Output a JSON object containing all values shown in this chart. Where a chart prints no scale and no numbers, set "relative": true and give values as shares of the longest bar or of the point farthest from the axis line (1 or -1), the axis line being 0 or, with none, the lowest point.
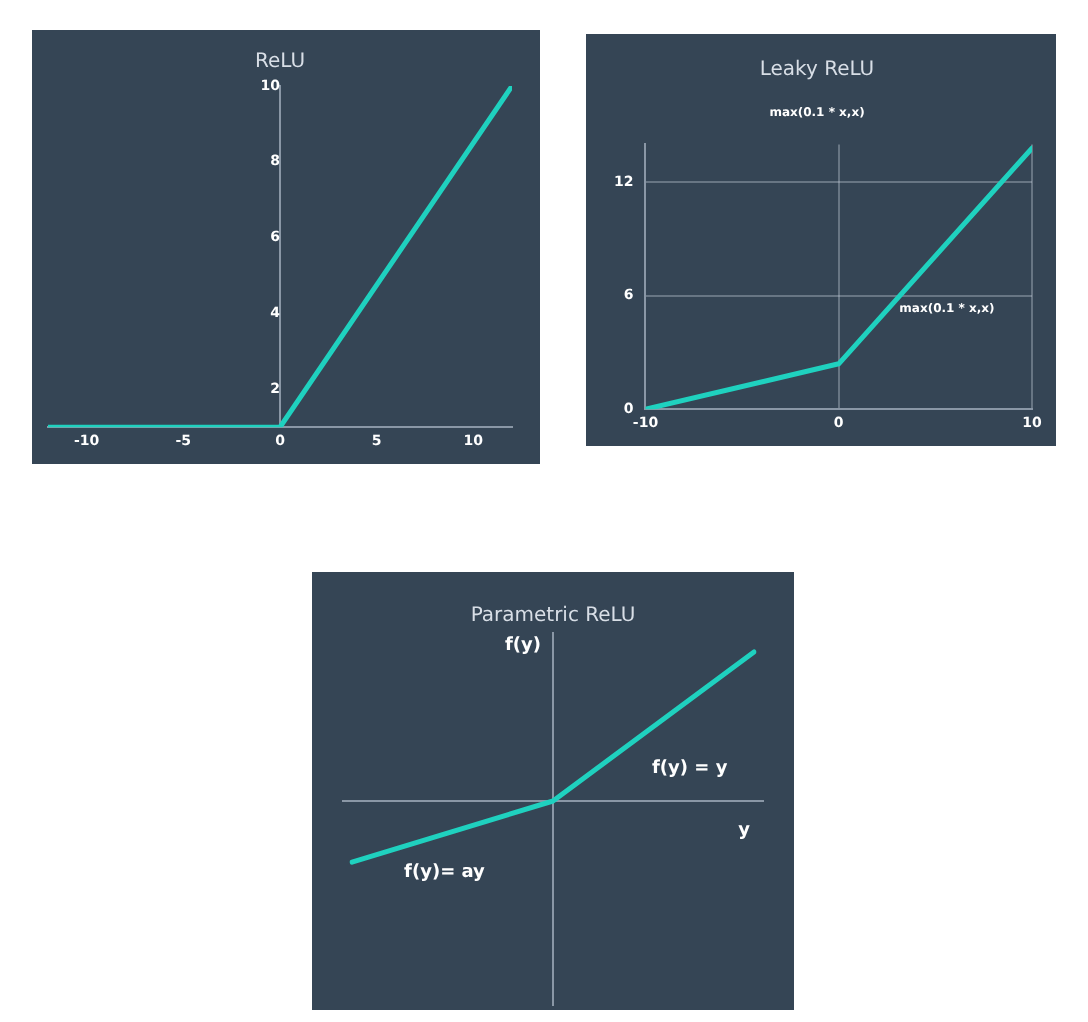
{
  "chart_data": [
    {
      "type": "line",
      "title": "ReLU",
      "x": [
        -12,
        0,
        12
      ],
      "series": [
        {
          "color": "#1fd1bf",
          "values": [
            1,
            1,
            10
          ]
        }
      ],
      "xlim": [
        -12,
        12
      ],
      "xticks": [
        -10,
        -5,
        0,
        5,
        10
      ],
      "ylim": [
        1,
        10
      ],
      "yticks": [
        2,
        4,
        6,
        8,
        10
      ],
      "grid": false,
      "legend": false,
      "marker": "none",
      "line_style": "solid"
    },
    {
      "type": "line",
      "title": "Leaky ReLU",
      "subtitle": "max(0.1 * x,x)",
      "annotations": [
        "max(0.1 * x,x)"
      ],
      "x": [
        -10,
        0,
        10
      ],
      "series": [
        {
          "color": "#1fd1bf",
          "values": [
            0,
            2.4,
            13.8
          ]
        }
      ],
      "xlim": [
        -10,
        10
      ],
      "xticks": [
        -10,
        0,
        10
      ],
      "ylim": [
        0,
        14
      ],
      "yticks": [
        0,
        6,
        12
      ],
      "grid": true,
      "legend": false,
      "marker": "none",
      "line_style": "solid"
    },
    {
      "type": "line",
      "title": "Parametric ReLU",
      "xlabel": "y",
      "ylabel": "f(y)",
      "annotations": [
        "f(y) = y",
        "f(y)= ay"
      ],
      "categories": [
        null,
        null,
        null
      ],
      "relative": true,
      "series": [
        {
          "color": "#1fd1bf",
          "values": [
            -0.41,
            0,
            1
          ]
        }
      ],
      "legend": false,
      "marker": "none",
      "line_style": "solid"
    }
  ]
}
